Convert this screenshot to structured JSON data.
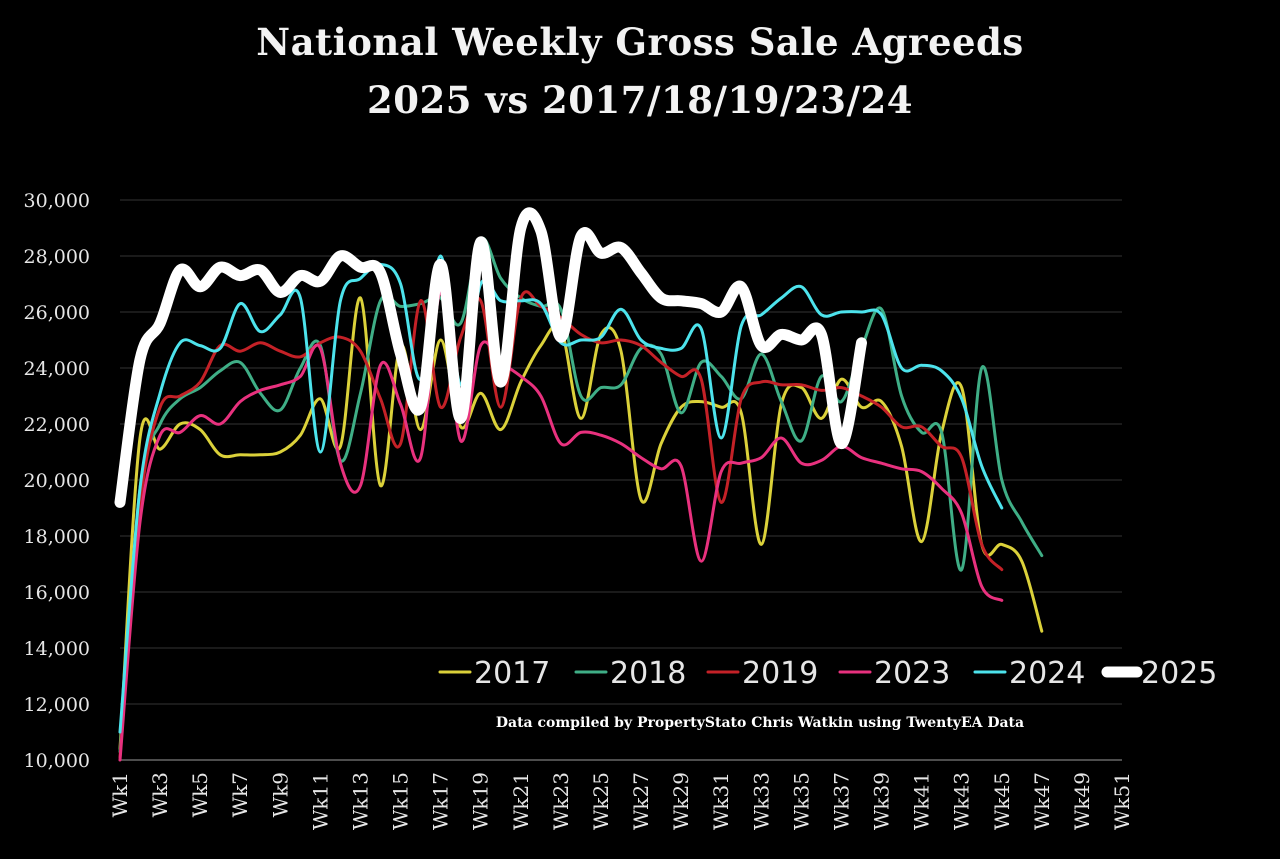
{
  "chart_data": {
    "type": "line",
    "title": "National Weekly Gross Sale Agreeds",
    "subtitle": "2025 vs 2017/18/19/23/24",
    "note": "Data compiled by PropertyStato Chris Watkin using TwentyEA Data",
    "ylim": [
      10000,
      30000
    ],
    "yticks": [
      10000,
      12000,
      14000,
      16000,
      18000,
      20000,
      22000,
      24000,
      26000,
      28000,
      30000
    ],
    "ytick_labels": [
      "10,000",
      "12,000",
      "14,000",
      "16,000",
      "18,000",
      "20,000",
      "22,000",
      "24,000",
      "26,000",
      "28,000",
      "30,000"
    ],
    "x_tick_labels": [
      "Wk1",
      "Wk3",
      "Wk5",
      "Wk7",
      "Wk9",
      "Wk11",
      "Wk13",
      "Wk15",
      "Wk17",
      "Wk19",
      "Wk21",
      "Wk23",
      "Wk25",
      "Wk27",
      "Wk29",
      "Wk31",
      "Wk33",
      "Wk35",
      "Wk37",
      "Wk39",
      "Wk41",
      "Wk43",
      "Wk45",
      "Wk47",
      "Wk49",
      "Wk51"
    ],
    "x_tick_weeks": [
      1,
      3,
      5,
      7,
      9,
      11,
      13,
      15,
      17,
      19,
      21,
      23,
      25,
      27,
      29,
      31,
      33,
      35,
      37,
      39,
      41,
      43,
      45,
      47,
      49,
      51
    ],
    "x_range": [
      1,
      51
    ],
    "grid": true,
    "legend_position": "bottom-right",
    "series": [
      {
        "name": "2017",
        "color": "#dbd13a",
        "width": 3,
        "values": [
          10400,
          21500,
          21100,
          22000,
          21800,
          20900,
          20900,
          20900,
          21000,
          21600,
          22900,
          21200,
          26500,
          19800,
          24800,
          21800,
          25000,
          21900,
          23100,
          21800,
          23500,
          24800,
          25400,
          22200,
          25200,
          24600,
          19300,
          21300,
          22600,
          22800,
          22600,
          22400,
          17700,
          22700,
          23300,
          22200,
          23600,
          22600,
          22800,
          21200,
          17800,
          21700,
          23300,
          17700,
          17700,
          17100,
          14600
        ]
      },
      {
        "name": "2018",
        "color": "#3fae86",
        "width": 3,
        "values": [
          10300,
          19700,
          22000,
          22900,
          23300,
          23900,
          24200,
          23100,
          22500,
          24000,
          24800,
          20700,
          23100,
          26400,
          26200,
          26300,
          26500,
          25600,
          28600,
          27200,
          26500,
          26200,
          26100,
          23000,
          23300,
          23400,
          24700,
          24500,
          22400,
          24200,
          23700,
          22900,
          24500,
          22800,
          21400,
          23700,
          22800,
          24700,
          26100,
          23000,
          21700,
          21700,
          16800,
          24000,
          20000,
          18500,
          17300
        ]
      },
      {
        "name": "2019",
        "color": "#c42127",
        "width": 3,
        "values": [
          10100,
          19100,
          22600,
          23000,
          23500,
          24800,
          24600,
          24900,
          24600,
          24400,
          24900,
          25100,
          24600,
          22900,
          21300,
          26400,
          22600,
          25100,
          26400,
          22600,
          26500,
          26200,
          25800,
          25200,
          24900,
          25000,
          24800,
          24200,
          23700,
          23600,
          19200,
          22900,
          23500,
          23400,
          23400,
          23200,
          23300,
          23000,
          22600,
          21900,
          21900,
          21200,
          20800,
          17700,
          16800
        ]
      },
      {
        "name": "2023",
        "color": "#e8317e",
        "width": 3,
        "values": [
          10000,
          18500,
          21600,
          21700,
          22300,
          22000,
          22800,
          23200,
          23400,
          23700,
          24700,
          20600,
          19800,
          24100,
          22700,
          20800,
          26700,
          21400,
          24800,
          24200,
          23700,
          23000,
          21300,
          21700,
          21600,
          21300,
          20800,
          20400,
          20500,
          17100,
          20300,
          20600,
          20800,
          21500,
          20600,
          20700,
          21200,
          20800,
          20600,
          20400,
          20300,
          19700,
          18800,
          16200,
          15700
        ]
      },
      {
        "name": "2024",
        "color": "#4de3ec",
        "width": 3,
        "values": [
          11000,
          19700,
          23100,
          24900,
          24800,
          24700,
          26300,
          25300,
          25900,
          26500,
          21000,
          26400,
          27200,
          27700,
          27000,
          23600,
          28000,
          23400,
          27000,
          26400,
          26400,
          26300,
          24900,
          25000,
          25100,
          26100,
          25000,
          24700,
          24700,
          25400,
          21500,
          25500,
          25900,
          26500,
          26900,
          25900,
          26000,
          26000,
          25900,
          24000,
          24100,
          23900,
          22900,
          20500,
          19000
        ]
      },
      {
        "name": "2025",
        "color": "#ffffff",
        "width": 11,
        "values": [
          19200,
          24300,
          25600,
          27500,
          26900,
          27600,
          27300,
          27500,
          26700,
          27300,
          27100,
          28000,
          27600,
          27400,
          24500,
          22600,
          27700,
          22200,
          28500,
          23500,
          29000,
          28900,
          25100,
          28700,
          28100,
          28300,
          27400,
          26500,
          26400,
          26300,
          26000,
          26900,
          24800,
          25200,
          25000,
          25200,
          21300,
          24900
        ]
      }
    ]
  }
}
